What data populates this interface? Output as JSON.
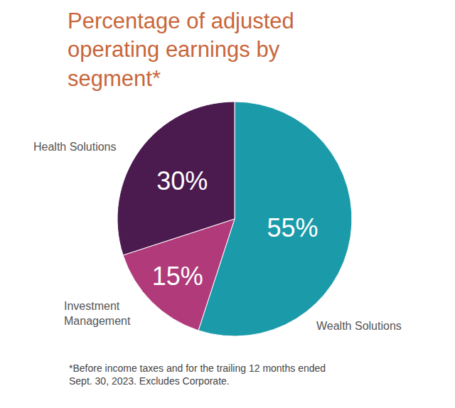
{
  "chart_data": {
    "type": "pie",
    "title": "Percentage of adjusted operating earnings by segment*",
    "categories": [
      "Wealth Solutions",
      "Investment Management",
      "Health Solutions"
    ],
    "values": [
      55,
      15,
      30
    ],
    "value_labels": [
      "55%",
      "15%",
      "30%"
    ],
    "colors": [
      "#1b9aaa",
      "#b03a7a",
      "#4b1a4f"
    ],
    "data_labels": true,
    "legend": false,
    "note": "*Before income taxes and for the trailing 12 months ended Sept. 30, 2023. Excludes Corporate."
  }
}
